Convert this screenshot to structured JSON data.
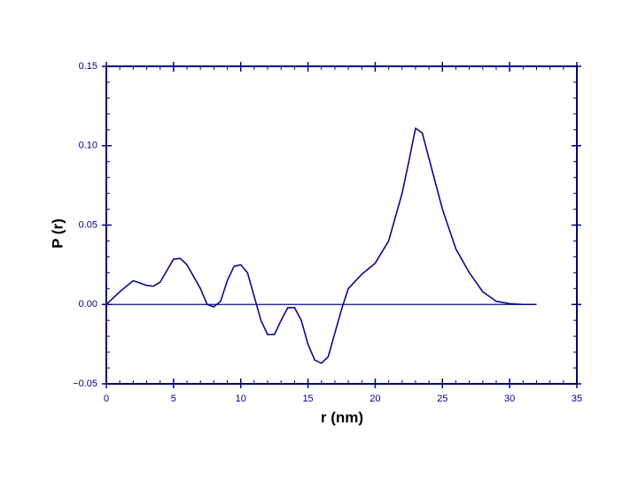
{
  "chart_data": {
    "type": "line",
    "color": "#0a0a8c",
    "x_label": "r (nm)",
    "y_label": "P (r)",
    "x": [
      0,
      1,
      2,
      3,
      3.5,
      4,
      5,
      5.5,
      6,
      7,
      7.5,
      8,
      8.5,
      9,
      9.5,
      10,
      10.5,
      11,
      11.5,
      12,
      12.5,
      13,
      13.5,
      14,
      14.5,
      15,
      15.5,
      16,
      16.5,
      17,
      17.5,
      18,
      19,
      20,
      21,
      22,
      22.5,
      23,
      23.5,
      24,
      25,
      26,
      27,
      28,
      29,
      30,
      31,
      32
    ],
    "values": [
      0,
      0.008,
      0.015,
      0.012,
      0.0115,
      0.014,
      0.0285,
      0.029,
      0.025,
      0.01,
      0.0,
      -0.0015,
      0.002,
      0.015,
      0.024,
      0.025,
      0.02,
      0.005,
      -0.01,
      -0.019,
      -0.019,
      -0.01,
      -0.002,
      -0.002,
      -0.01,
      -0.025,
      -0.035,
      -0.037,
      -0.033,
      -0.018,
      -0.003,
      0.01,
      0.019,
      0.026,
      0.04,
      0.07,
      0.09,
      0.111,
      0.108,
      0.092,
      0.06,
      0.035,
      0.02,
      0.008,
      0.002,
      0.0005,
      0,
      0
    ],
    "zero_line": true,
    "xlim": [
      0,
      35
    ],
    "xticks": [
      0,
      5,
      10,
      15,
      20,
      25,
      30,
      35
    ],
    "ylim": [
      -0.05,
      0.15
    ],
    "yticks": [
      {
        "value": -0.05,
        "label": "−0.05"
      },
      {
        "value": 0,
        "label": "0.00"
      },
      {
        "value": 0.05,
        "label": "0.05"
      },
      {
        "value": 0.1,
        "label": "0.10"
      },
      0.15
    ],
    "minor_divisions": 5
  }
}
